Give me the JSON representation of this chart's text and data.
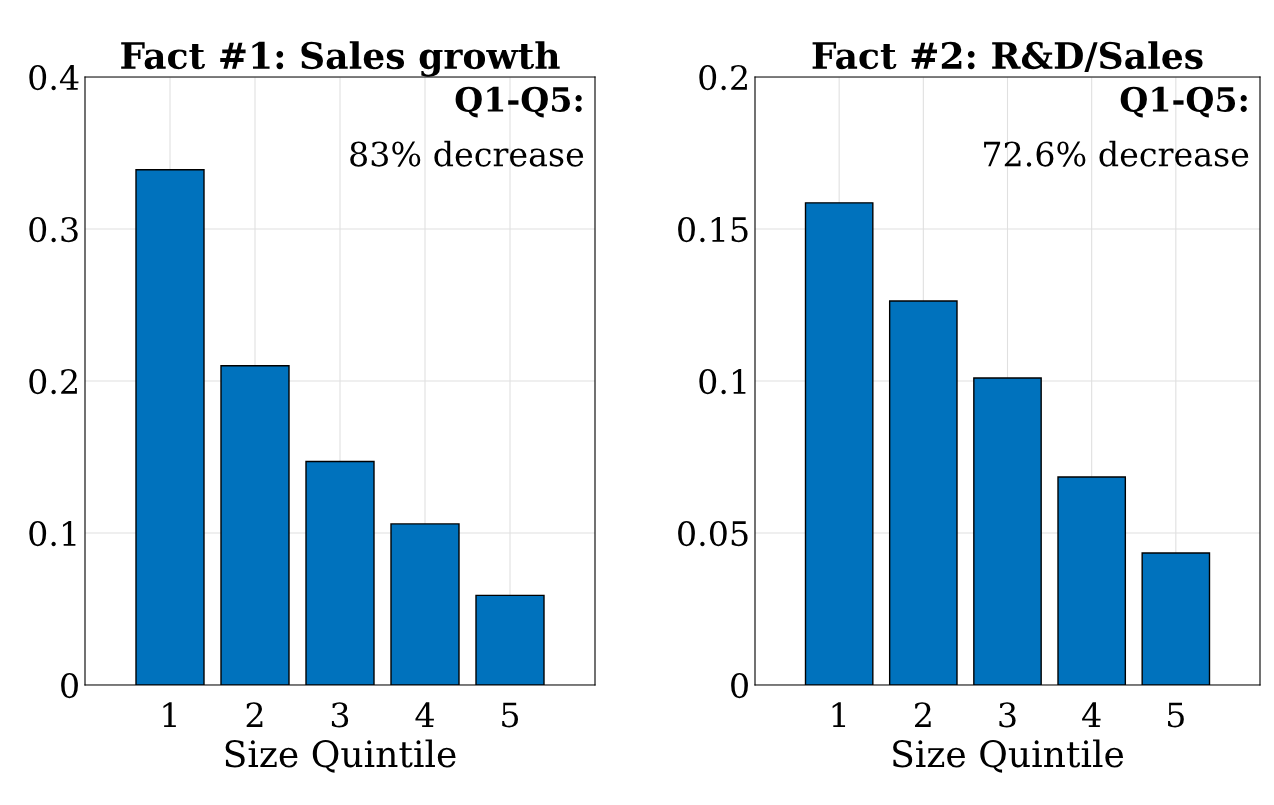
{
  "chart_data": [
    {
      "type": "bar",
      "title": "Fact #1: Sales growth",
      "categories": [
        "1",
        "2",
        "3",
        "4",
        "5"
      ],
      "values": [
        0.339,
        0.21,
        0.147,
        0.106,
        0.059
      ],
      "color": "#0072bd",
      "xlabel": "Size Quintile",
      "ylim": [
        0,
        0.4
      ],
      "yticks": [
        0,
        0.1,
        0.2,
        0.3,
        0.4
      ],
      "grid": true,
      "annotations": [
        "Q1-Q5:",
        "83% decrease"
      ]
    },
    {
      "type": "bar",
      "title": "Fact #2: R&D/Sales",
      "categories": [
        "1",
        "2",
        "3",
        "4",
        "5"
      ],
      "values": [
        0.1586,
        0.1263,
        0.101,
        0.0684,
        0.0434
      ],
      "color": "#0072bd",
      "xlabel": "Size Quintile",
      "ylim": [
        0,
        0.2
      ],
      "yticks": [
        0,
        0.05,
        0.1,
        0.15,
        0.2
      ],
      "grid": true,
      "annotations": [
        "Q1-Q5:",
        "72.6% decrease"
      ]
    }
  ]
}
